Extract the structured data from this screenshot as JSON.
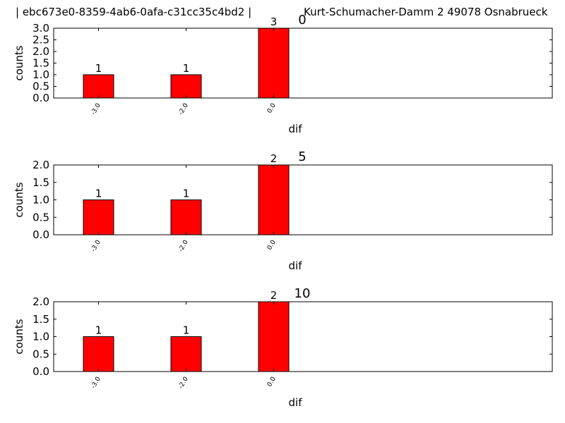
{
  "header": {
    "left": "| ebc673e0-8359-4ab6-0afa-c31cc35c4bd2 |",
    "right": "Kurt-Schumacher-Damm 2 49078 Osnabrueck"
  },
  "chart_data": [
    {
      "type": "bar",
      "title": "0",
      "categories": [
        "-3.0",
        "-2.0",
        "0.0"
      ],
      "values": [
        1,
        1,
        3
      ],
      "data_labels": [
        "1",
        "1",
        "3"
      ],
      "xlabel": "dif",
      "ylabel": "counts",
      "ylim": [
        0,
        3
      ],
      "yticks": [
        "0.0",
        "0.5",
        "1.0",
        "1.5",
        "2.0",
        "2.5",
        "3.0"
      ],
      "bar_color": "#ff0000",
      "grid": false
    },
    {
      "type": "bar",
      "title": "5",
      "categories": [
        "-3.0",
        "-2.0",
        "0.0"
      ],
      "values": [
        1,
        1,
        2
      ],
      "data_labels": [
        "1",
        "1",
        "2"
      ],
      "xlabel": "dif",
      "ylabel": "counts",
      "ylim": [
        0,
        2
      ],
      "yticks": [
        "0.0",
        "0.5",
        "1.0",
        "1.5",
        "2.0"
      ],
      "bar_color": "#ff0000",
      "grid": false
    },
    {
      "type": "bar",
      "title": "10",
      "categories": [
        "-3.0",
        "-2.0",
        "0.0"
      ],
      "values": [
        1,
        1,
        2
      ],
      "data_labels": [
        "1",
        "1",
        "2"
      ],
      "xlabel": "dif",
      "ylabel": "counts",
      "ylim": [
        0,
        2
      ],
      "yticks": [
        "0.0",
        "0.5",
        "1.0",
        "1.5",
        "2.0"
      ],
      "bar_color": "#ff0000",
      "grid": false
    }
  ]
}
